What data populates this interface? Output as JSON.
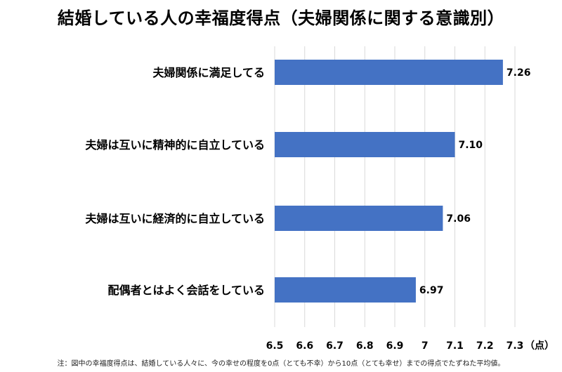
{
  "chart_data": {
    "type": "bar",
    "orientation": "horizontal",
    "title": "結婚している人の幸福度得点（夫婦関係に関する意識別）",
    "categories": [
      "夫婦関係に満足してる",
      "夫婦は互いに精神的に自立している",
      "夫婦は互いに経済的に自立している",
      "配偶者とはよく会話をしている"
    ],
    "values": [
      7.26,
      7.1,
      7.06,
      6.97
    ],
    "value_labels": [
      "7.26",
      "7.10",
      "7.06",
      "6.97"
    ],
    "xlim": [
      6.5,
      7.3
    ],
    "x_ticks": [
      6.5,
      6.6,
      6.7,
      6.8,
      6.9,
      7,
      7.1,
      7.2,
      7.3
    ],
    "x_tick_labels": [
      "6.5",
      "6.6",
      "6.7",
      "6.8",
      "6.9",
      "7",
      "7.1",
      "7.2",
      "7.3"
    ],
    "x_unit": "（点）",
    "grid": true,
    "bar_color": "#4472C4",
    "grid_color": "#d9d9d9"
  },
  "footnote": "注：図中の幸福度得点は、結婚している人々に、今の幸せの程度を0点（とても不幸）から10点（とても幸せ）までの得点でたずねた平均値。"
}
